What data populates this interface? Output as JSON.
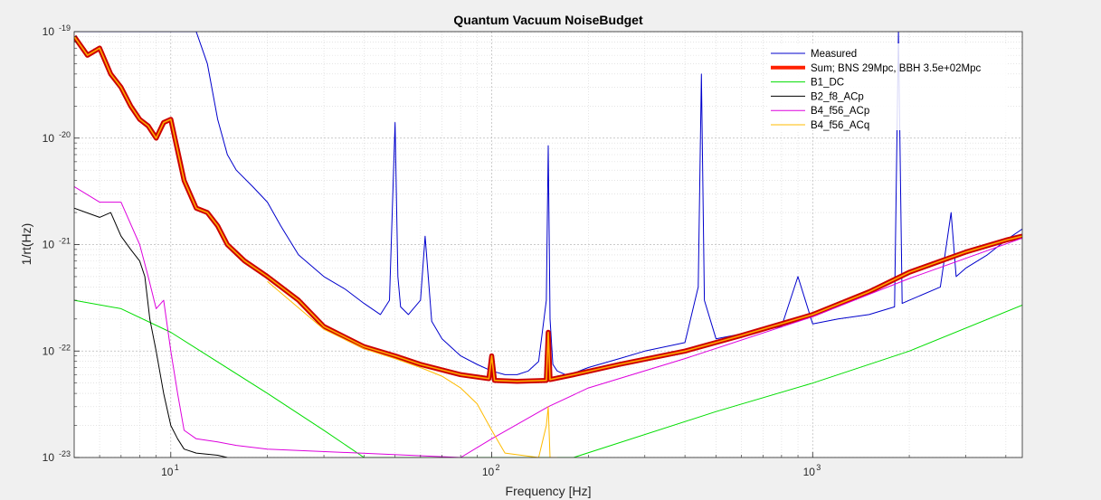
{
  "chart_data": {
    "type": "line",
    "title": "Quantum Vacuum NoiseBudget",
    "xlabel": "Frequency [Hz]",
    "ylabel": "1/rt(Hz)",
    "xscale": "log",
    "yscale": "log",
    "xlim": [
      5,
      4500
    ],
    "ylim": [
      1e-23,
      1e-19
    ],
    "grid": true,
    "legend_position": "top-right",
    "x_ticks": [
      {
        "value": 10,
        "base": "10",
        "exp": "1"
      },
      {
        "value": 100,
        "base": "10",
        "exp": "2"
      },
      {
        "value": 1000,
        "base": "10",
        "exp": "3"
      }
    ],
    "y_ticks": [
      {
        "value": 1e-23,
        "base": "10",
        "exp": "-23"
      },
      {
        "value": 1e-22,
        "base": "10",
        "exp": "-22"
      },
      {
        "value": 1e-21,
        "base": "10",
        "exp": "-21"
      },
      {
        "value": 1e-20,
        "base": "10",
        "exp": "-20"
      },
      {
        "value": 1e-19,
        "base": "10",
        "exp": "-19"
      }
    ],
    "series": [
      {
        "name": "Measured",
        "color": "#0000cc",
        "width": 1,
        "x": [
          5,
          12,
          13,
          14,
          15,
          16,
          18,
          20,
          22,
          25,
          30,
          35,
          40,
          45,
          48,
          50,
          51,
          52,
          55,
          60,
          62,
          65,
          70,
          80,
          90,
          100,
          110,
          120,
          130,
          140,
          148,
          150,
          152,
          155,
          160,
          170,
          180,
          200,
          250,
          300,
          400,
          440,
          450,
          460,
          500,
          600,
          800,
          900,
          1000,
          1100,
          1200,
          1500,
          1800,
          1850,
          1900,
          2000,
          2500,
          2700,
          2800,
          3000,
          3500,
          4000,
          4500
        ],
        "y": [
          1e-19,
          1e-19,
          5e-20,
          1.5e-20,
          7e-21,
          5e-21,
          3.5e-21,
          2.5e-21,
          1.5e-21,
          8e-22,
          5e-22,
          3.8e-22,
          2.8e-22,
          2.2e-22,
          3e-22,
          1.4e-20,
          5e-22,
          2.6e-22,
          2.2e-22,
          3e-22,
          1.2e-21,
          1.9e-22,
          1.3e-22,
          9e-23,
          7.5e-23,
          6.5e-23,
          6e-23,
          6e-23,
          6.5e-23,
          8e-23,
          3e-22,
          8.5e-21,
          2e-22,
          7.5e-23,
          6.5e-23,
          6e-23,
          6.2e-23,
          7e-23,
          8.5e-23,
          1e-22,
          1.2e-22,
          4e-22,
          4e-20,
          3e-22,
          1.3e-22,
          1.45e-22,
          1.7e-22,
          5e-22,
          1.8e-22,
          1.9e-22,
          2e-22,
          2.2e-22,
          2.6e-22,
          1e-19,
          2.8e-22,
          3e-22,
          4e-22,
          2e-21,
          5e-22,
          6e-22,
          8e-22,
          1.1e-21,
          1.4e-21
        ]
      },
      {
        "name": "Sum; BNS 29Mpc, BBH 3.5e+02Mpc",
        "color": "#ff2000",
        "width": 4.5,
        "x": [
          5,
          5.5,
          6,
          6.5,
          7,
          7.5,
          8,
          8.5,
          9,
          9.5,
          10,
          11,
          12,
          13,
          14,
          15,
          17,
          20,
          25,
          30,
          40,
          50,
          60,
          80,
          98,
          100,
          102,
          120,
          148,
          150,
          152,
          180,
          250,
          400,
          600,
          1000,
          1500,
          2000,
          3000,
          4000,
          4500
        ],
        "y": [
          9e-20,
          6e-20,
          7e-20,
          4e-20,
          3e-20,
          2e-20,
          1.5e-20,
          1.3e-20,
          1e-20,
          1.4e-20,
          1.5e-20,
          4e-21,
          2.2e-21,
          2e-21,
          1.5e-21,
          1e-21,
          7e-22,
          5e-22,
          3e-22,
          1.7e-22,
          1.1e-22,
          9e-23,
          7.5e-23,
          6e-23,
          5.5e-23,
          9e-23,
          5.3e-23,
          5.2e-23,
          5.3e-23,
          1.5e-22,
          5.4e-23,
          6e-23,
          7.5e-23,
          1e-22,
          1.4e-22,
          2.2e-22,
          3.6e-22,
          5.5e-22,
          8.5e-22,
          1.1e-21,
          1.2e-21
        ]
      },
      {
        "name": "B1_DC",
        "color": "#00dd00",
        "width": 1,
        "x": [
          5,
          7,
          10,
          20,
          30,
          40,
          180,
          500,
          1000,
          2000,
          4500
        ],
        "y": [
          3e-22,
          2.5e-22,
          1.5e-22,
          4e-23,
          1.8e-23,
          1e-23,
          1e-23,
          2.7e-23,
          5e-23,
          1e-22,
          2.7e-22
        ]
      },
      {
        "name": "B2_f8_ACp",
        "color": "#000000",
        "width": 1,
        "x": [
          5,
          6,
          6.5,
          7,
          7.5,
          8,
          8.3,
          8.6,
          9,
          9.5,
          10,
          10.5,
          11,
          12,
          14,
          15
        ],
        "y": [
          2.2e-21,
          1.8e-21,
          2e-21,
          1.2e-21,
          9e-22,
          7e-22,
          5e-22,
          2e-22,
          1e-22,
          4e-23,
          2e-23,
          1.5e-23,
          1.2e-23,
          1.1e-23,
          1.05e-23,
          1e-23
        ]
      },
      {
        "name": "B4_f56_ACp",
        "color": "#dd00dd",
        "width": 1,
        "x": [
          5,
          6,
          7,
          8,
          8.5,
          9,
          9.5,
          10,
          10.5,
          11,
          12,
          14,
          16,
          20,
          80,
          100,
          150,
          200,
          400,
          1000,
          2000,
          4500
        ],
        "y": [
          3.5e-21,
          2.5e-21,
          2.5e-21,
          1e-21,
          5e-22,
          2.5e-22,
          3e-22,
          1e-22,
          4e-23,
          1.8e-23,
          1.5e-23,
          1.4e-23,
          1.3e-23,
          1.2e-23,
          1e-23,
          1.5e-23,
          3e-23,
          4.5e-23,
          8.5e-23,
          2.1e-22,
          4.8e-22,
          1.15e-21
        ]
      },
      {
        "name": "B4_f56_ACq",
        "color": "#ffbb00",
        "width": 1,
        "x": [
          20,
          30,
          40,
          50,
          60,
          70,
          80,
          90,
          100,
          110,
          140,
          148,
          150,
          152,
          160
        ],
        "y": [
          4.5e-22,
          1.6e-22,
          1.05e-22,
          8.5e-23,
          7e-23,
          5.8e-23,
          4.5e-23,
          3.2e-23,
          1.8e-23,
          1.1e-23,
          1e-23,
          2e-23,
          3e-23,
          1e-23,
          1e-23
        ]
      }
    ]
  }
}
